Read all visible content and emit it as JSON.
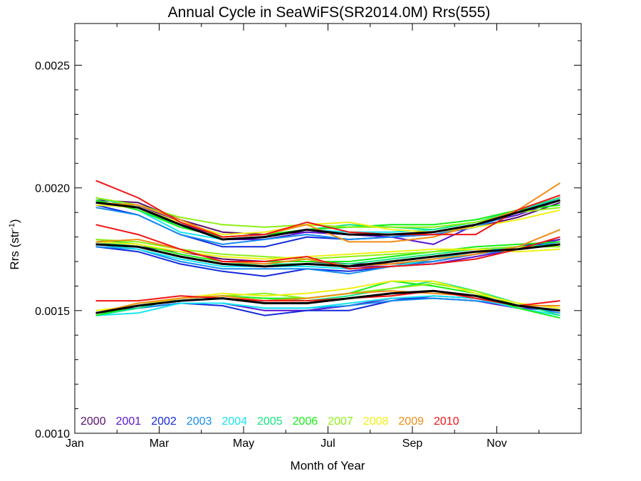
{
  "chart_data": {
    "type": "line",
    "title": "Annual Cycle in SeaWiFS(SR2014.0M) Rrs(555)",
    "xlabel": "Month of Year",
    "ylabel_main": "Rrs (str",
    "ylabel_sup": "-1",
    "ylabel_close": ")",
    "xlim": [
      0,
      12
    ],
    "ylim": [
      0.001,
      0.00267
    ],
    "xticks": [
      {
        "value": 0,
        "label": "Jan"
      },
      {
        "value": 2,
        "label": "Mar"
      },
      {
        "value": 4,
        "label": "May"
      },
      {
        "value": 6,
        "label": "Jul"
      },
      {
        "value": 8,
        "label": "Sep"
      },
      {
        "value": 10,
        "label": "Nov"
      }
    ],
    "yticks": [
      {
        "value": 0.001,
        "label": "0.0010"
      },
      {
        "value": 0.0015,
        "label": "0.0015"
      },
      {
        "value": 0.002,
        "label": "0.0020"
      },
      {
        "value": 0.0025,
        "label": "0.0025"
      }
    ],
    "x": [
      0.5,
      1.5,
      2.5,
      3.5,
      4.5,
      5.5,
      6.5,
      7.5,
      8.5,
      9.5,
      10.5,
      11.5
    ],
    "legend_placement": "bottom-left",
    "grid": false,
    "legend": [
      {
        "name": "2000",
        "color": "#5a0f6e"
      },
      {
        "name": "2001",
        "color": "#5a14d2"
      },
      {
        "name": "2002",
        "color": "#1428dc"
      },
      {
        "name": "2003",
        "color": "#148cf0"
      },
      {
        "name": "2004",
        "color": "#14e6f0"
      },
      {
        "name": "2005",
        "color": "#14e682"
      },
      {
        "name": "2006",
        "color": "#14f014"
      },
      {
        "name": "2007",
        "color": "#8cf014"
      },
      {
        "name": "2008",
        "color": "#f0f014"
      },
      {
        "name": "2009",
        "color": "#f08c14"
      },
      {
        "name": "2010",
        "color": "#f01414"
      }
    ],
    "groups": [
      {
        "label": "upper",
        "years": {
          "2000": [
            0.00195,
            0.00194,
            0.00187,
            0.00182,
            0.00181,
            0.00182,
            0.00181,
            0.0018,
            0.00181,
            0.00184,
            0.00188,
            0.00194
          ],
          "2001": [
            0.00194,
            0.00193,
            0.00186,
            0.00179,
            0.00179,
            0.00182,
            0.00181,
            0.0018,
            0.00177,
            0.00185,
            0.00189,
            0.00195
          ],
          "2002": [
            0.00193,
            0.00189,
            0.00181,
            0.00176,
            0.00176,
            0.0018,
            0.00179,
            0.0018,
            0.00182,
            0.00184,
            0.0019,
            0.00195
          ],
          "2003": [
            0.00192,
            0.00189,
            0.00181,
            0.00177,
            0.00179,
            0.00181,
            0.00179,
            0.0018,
            0.00181,
            0.00184,
            0.0019,
            0.00196
          ],
          "2004": [
            0.00195,
            0.00191,
            0.00182,
            0.00179,
            0.0018,
            0.00183,
            0.00182,
            0.00182,
            0.00183,
            0.00186,
            0.00191,
            0.00195
          ],
          "2005": [
            0.00196,
            0.00192,
            0.00184,
            0.0018,
            0.00181,
            0.00183,
            0.00185,
            0.00184,
            0.00183,
            0.00186,
            0.00191,
            0.00196
          ],
          "2006": [
            0.00195,
            0.00191,
            0.00184,
            0.0018,
            0.00181,
            0.00183,
            0.00184,
            0.00185,
            0.00185,
            0.00187,
            0.00191,
            0.00193
          ],
          "2007": [
            0.00196,
            0.00193,
            0.00188,
            0.00185,
            0.00184,
            0.00185,
            0.00184,
            0.00184,
            0.00184,
            0.00186,
            0.0019,
            0.00192
          ],
          "2008": [
            0.00193,
            0.00192,
            0.00186,
            0.00181,
            0.00182,
            0.00185,
            0.00186,
            0.00183,
            0.00182,
            0.00184,
            0.00187,
            0.00191
          ],
          "2009": [
            0.00194,
            0.00193,
            0.00187,
            0.0018,
            0.00181,
            0.00185,
            0.00178,
            0.00178,
            0.0018,
            0.00185,
            0.00191,
            0.00202
          ],
          "2010": [
            0.00203,
            0.00196,
            0.00186,
            0.0018,
            0.00181,
            0.00186,
            0.00182,
            0.00181,
            0.00181,
            0.00181,
            0.00191,
            0.00197
          ]
        },
        "mean": [
          0.00194,
          0.00192,
          0.00185,
          0.00179,
          0.0018,
          0.00183,
          0.00181,
          0.00181,
          0.00182,
          0.00185,
          0.0019,
          0.00195
        ]
      },
      {
        "label": "middle",
        "years": {
          "2000": [
            0.00178,
            0.00176,
            0.00174,
            0.00171,
            0.0017,
            0.0017,
            0.00169,
            0.00169,
            0.0017,
            0.00173,
            0.00176,
            0.00179
          ],
          "2001": [
            0.00177,
            0.00176,
            0.00172,
            0.00169,
            0.00168,
            0.00169,
            0.00168,
            0.00168,
            0.00169,
            0.00172,
            0.00175,
            0.00179
          ],
          "2002": [
            0.00176,
            0.00174,
            0.00169,
            0.00166,
            0.00164,
            0.00167,
            0.00166,
            0.00168,
            0.0017,
            0.00173,
            0.00176,
            0.00178
          ],
          "2003": [
            0.00176,
            0.00175,
            0.0017,
            0.00167,
            0.00167,
            0.00167,
            0.00165,
            0.00168,
            0.0017,
            0.00173,
            0.00175,
            0.00178
          ],
          "2004": [
            0.00177,
            0.00175,
            0.00171,
            0.00168,
            0.00168,
            0.00168,
            0.00167,
            0.00168,
            0.00171,
            0.00174,
            0.00176,
            0.00177
          ],
          "2005": [
            0.00178,
            0.00176,
            0.00172,
            0.00169,
            0.00169,
            0.00169,
            0.00169,
            0.00171,
            0.00173,
            0.00175,
            0.00176,
            0.00177
          ],
          "2006": [
            0.00179,
            0.00177,
            0.00173,
            0.0017,
            0.0017,
            0.0017,
            0.0017,
            0.00172,
            0.00174,
            0.00176,
            0.00177,
            0.00178
          ],
          "2007": [
            0.00179,
            0.00178,
            0.00175,
            0.00173,
            0.00172,
            0.00171,
            0.00172,
            0.00173,
            0.00174,
            0.00175,
            0.00176,
            0.00176
          ],
          "2008": [
            0.00178,
            0.00177,
            0.00174,
            0.00172,
            0.00171,
            0.00172,
            0.00173,
            0.00174,
            0.00175,
            0.00175,
            0.00174,
            0.00175
          ],
          "2009": [
            0.00178,
            0.00179,
            0.00175,
            0.0017,
            0.00169,
            0.00171,
            0.00168,
            0.00169,
            0.00171,
            0.00173,
            0.00176,
            0.00183
          ],
          "2010": [
            0.00185,
            0.00181,
            0.00175,
            0.0017,
            0.0017,
            0.00172,
            0.00167,
            0.00168,
            0.00169,
            0.00171,
            0.00175,
            0.0018
          ]
        },
        "mean": [
          0.00177,
          0.00176,
          0.00172,
          0.00169,
          0.00168,
          0.00169,
          0.00168,
          0.0017,
          0.00172,
          0.00174,
          0.00175,
          0.00177
        ]
      },
      {
        "label": "lower",
        "years": {
          "2000": [
            0.00149,
            0.00152,
            0.00154,
            0.00155,
            0.00153,
            0.00153,
            0.00155,
            0.00157,
            0.00158,
            0.00156,
            0.00152,
            0.0015
          ],
          "2001": [
            0.00149,
            0.00151,
            0.00153,
            0.00153,
            0.0015,
            0.0015,
            0.00152,
            0.00155,
            0.00155,
            0.00154,
            0.00151,
            0.0015
          ],
          "2002": [
            0.00149,
            0.00151,
            0.00153,
            0.00152,
            0.00148,
            0.0015,
            0.0015,
            0.00154,
            0.00156,
            0.00155,
            0.00152,
            0.0015
          ],
          "2003": [
            0.00148,
            0.00151,
            0.00153,
            0.00153,
            0.00151,
            0.00151,
            0.00152,
            0.00154,
            0.00155,
            0.00154,
            0.00152,
            0.00149
          ],
          "2004": [
            0.00148,
            0.00149,
            0.00153,
            0.00153,
            0.00151,
            0.00151,
            0.00153,
            0.00155,
            0.00156,
            0.00155,
            0.00151,
            0.00148
          ],
          "2005": [
            0.00148,
            0.00151,
            0.00155,
            0.00156,
            0.00155,
            0.00154,
            0.00156,
            0.00159,
            0.00162,
            0.00158,
            0.00153,
            0.00148
          ],
          "2006": [
            0.00148,
            0.00152,
            0.00155,
            0.00156,
            0.00155,
            0.00155,
            0.00157,
            0.00162,
            0.0016,
            0.00157,
            0.00151,
            0.00147
          ],
          "2007": [
            0.00149,
            0.00153,
            0.00155,
            0.00156,
            0.00157,
            0.00155,
            0.00157,
            0.00159,
            0.00161,
            0.00158,
            0.00152,
            0.0015
          ],
          "2008": [
            0.0015,
            0.00152,
            0.00155,
            0.00157,
            0.00156,
            0.00157,
            0.00159,
            0.00162,
            0.00162,
            0.00157,
            0.00153,
            0.00151
          ],
          "2009": [
            0.00149,
            0.00153,
            0.00155,
            0.00156,
            0.00154,
            0.00155,
            0.00157,
            0.00158,
            0.00157,
            0.00156,
            0.00152,
            0.00152
          ],
          "2010": [
            0.00154,
            0.00154,
            0.00156,
            0.00155,
            0.00154,
            0.00154,
            0.00155,
            0.00156,
            0.00158,
            0.00155,
            0.00152,
            0.00154
          ]
        },
        "mean": [
          0.00149,
          0.00152,
          0.00154,
          0.00155,
          0.00153,
          0.00153,
          0.00155,
          0.00157,
          0.00158,
          0.00156,
          0.00152,
          0.0015
        ]
      }
    ],
    "mean_color": "#000000"
  }
}
